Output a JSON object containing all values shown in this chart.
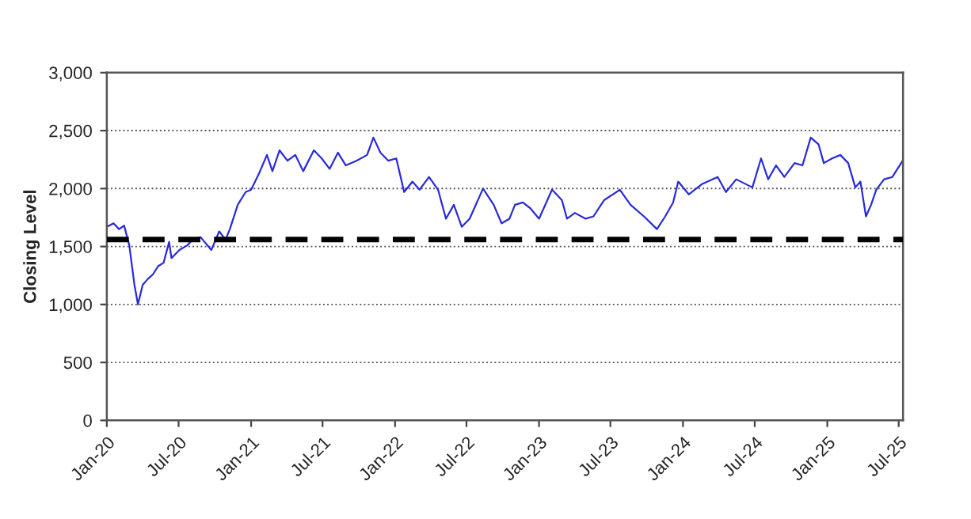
{
  "chart_data": {
    "type": "line",
    "ylabel": "Closing Level",
    "x": [
      "2020-01-01",
      "2020-01-18",
      "2020-02-01",
      "2020-02-14",
      "2020-02-27",
      "2020-03-11",
      "2020-03-20",
      "2020-04-01",
      "2020-04-14",
      "2020-04-27",
      "2020-05-10",
      "2020-05-24",
      "2020-06-07",
      "2020-06-13",
      "2020-07-03",
      "2020-07-23",
      "2020-08-06",
      "2020-08-26",
      "2020-09-22",
      "2020-10-12",
      "2020-10-28",
      "2020-11-08",
      "2020-11-28",
      "2020-12-18",
      "2021-01-01",
      "2021-01-21",
      "2021-02-10",
      "2021-02-24",
      "2021-03-14",
      "2021-04-03",
      "2021-04-23",
      "2021-05-13",
      "2021-06-09",
      "2021-06-29",
      "2021-07-19",
      "2021-08-09",
      "2021-08-29",
      "2021-09-25",
      "2021-10-22",
      "2021-11-07",
      "2021-11-25",
      "2021-12-15",
      "2022-01-04",
      "2022-01-24",
      "2022-02-14",
      "2022-03-04",
      "2022-03-28",
      "2022-04-20",
      "2022-05-10",
      "2022-05-30",
      "2022-06-19",
      "2022-07-09",
      "2022-08-12",
      "2022-09-08",
      "2022-09-28",
      "2022-10-18",
      "2022-11-01",
      "2022-11-21",
      "2022-12-10",
      "2023-01-01",
      "2023-02-03",
      "2023-02-28",
      "2023-03-13",
      "2023-04-02",
      "2023-04-29",
      "2023-05-19",
      "2023-06-15",
      "2023-07-25",
      "2023-08-21",
      "2023-09-24",
      "2023-10-27",
      "2023-11-17",
      "2023-12-07",
      "2023-12-20",
      "2024-01-16",
      "2024-02-19",
      "2024-03-29",
      "2024-04-19",
      "2024-05-15",
      "2024-06-25",
      "2024-07-17",
      "2024-08-04",
      "2024-08-24",
      "2024-09-14",
      "2024-10-10",
      "2024-10-30",
      "2024-11-20",
      "2024-12-10",
      "2024-12-23",
      "2025-01-13",
      "2025-02-03",
      "2025-02-23",
      "2025-03-13",
      "2025-03-26",
      "2025-04-09",
      "2025-04-22",
      "2025-05-05",
      "2025-05-25",
      "2025-06-15",
      "2025-07-11"
    ],
    "series": [
      {
        "color": "#2a2ad8",
        "values": [
          1670,
          1700,
          1650,
          1680,
          1510,
          1170,
          1000,
          1170,
          1220,
          1260,
          1330,
          1360,
          1540,
          1400,
          1470,
          1510,
          1560,
          1580,
          1470,
          1630,
          1560,
          1650,
          1860,
          1970,
          1990,
          2130,
          2290,
          2150,
          2330,
          2240,
          2290,
          2150,
          2330,
          2260,
          2170,
          2310,
          2200,
          2240,
          2290,
          2440,
          2310,
          2240,
          2260,
          1970,
          2060,
          1990,
          2100,
          1990,
          1740,
          1860,
          1670,
          1740,
          2000,
          1860,
          1700,
          1740,
          1860,
          1880,
          1830,
          1740,
          1990,
          1900,
          1740,
          1790,
          1740,
          1760,
          1900,
          1990,
          1860,
          1760,
          1650,
          1760,
          1880,
          2060,
          1950,
          2040,
          2100,
          1970,
          2080,
          2010,
          2260,
          2080,
          2200,
          2100,
          2220,
          2200,
          2440,
          2380,
          2220,
          2260,
          2290,
          2220,
          2010,
          2060,
          1760,
          1860,
          1990,
          2080,
          2100,
          2240
        ]
      }
    ],
    "xlim": [
      "2020-01-01",
      "2025-07-12"
    ],
    "xticks": [
      {
        "value": "2020-01-01",
        "label": "Jan-20"
      },
      {
        "value": "2020-07-01",
        "label": "Jul-20"
      },
      {
        "value": "2021-01-01",
        "label": "Jan-21"
      },
      {
        "value": "2021-07-01",
        "label": "Jul-21"
      },
      {
        "value": "2022-01-01",
        "label": "Jan-22"
      },
      {
        "value": "2022-07-01",
        "label": "Jul-22"
      },
      {
        "value": "2023-01-01",
        "label": "Jan-23"
      },
      {
        "value": "2023-07-01",
        "label": "Jul-23"
      },
      {
        "value": "2024-01-01",
        "label": "Jan-24"
      },
      {
        "value": "2024-07-01",
        "label": "Jul-24"
      },
      {
        "value": "2025-01-01",
        "label": "Jan-25"
      },
      {
        "value": "2025-07-01",
        "label": "Jul-25"
      }
    ],
    "ylim": [
      0,
      3000
    ],
    "yticks": [
      0,
      {
        "value": 500,
        "label": "500"
      },
      {
        "value": 1000,
        "label": "1,000"
      },
      {
        "value": 1500,
        "label": "1,500"
      },
      {
        "value": 2000,
        "label": "2,000"
      },
      {
        "value": 2500,
        "label": "2,500"
      },
      {
        "value": 3000,
        "label": "3,000"
      }
    ],
    "grid": "y",
    "ref_lines": [
      {
        "axis": "y",
        "value": 1560,
        "color": "#000000",
        "line_style": "dashed"
      }
    ],
    "line_style": "solid",
    "marker": "none"
  }
}
